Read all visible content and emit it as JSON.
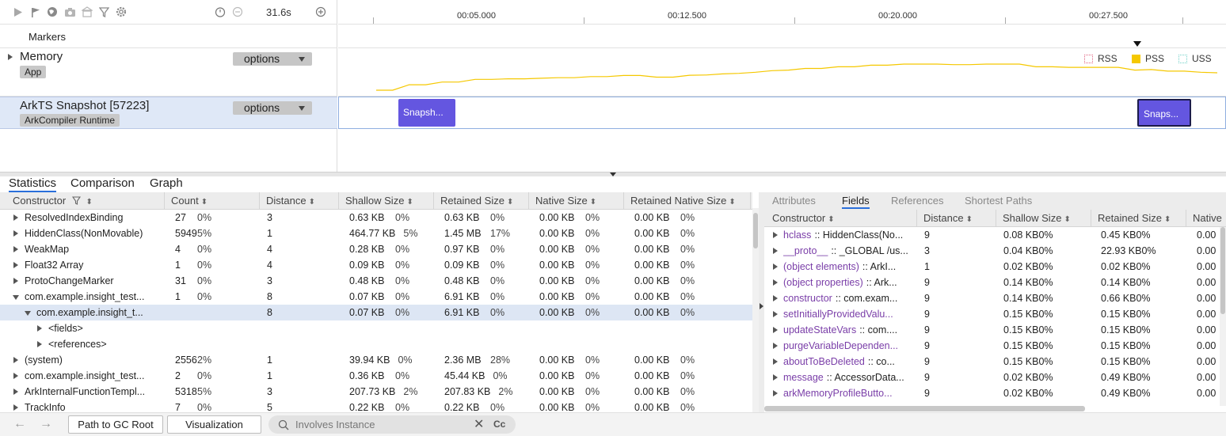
{
  "toolbar": {
    "duration": "31.6s",
    "icons": [
      "play-icon",
      "flag-icon",
      "globe-icon",
      "camera-icon",
      "building-icon",
      "filter-icon",
      "gear-icon",
      "timer-icon",
      "minus-circle-icon",
      "plus-circle-icon"
    ]
  },
  "tracks": {
    "markers_label": "Markers",
    "memory": {
      "title": "Memory",
      "chip": "App",
      "options": "options"
    },
    "snapshot": {
      "title": "ArkTS Snapshot [57223]",
      "chip": "ArkCompiler Runtime",
      "options": "options"
    }
  },
  "ruler": {
    "ticks": [
      "00:05.000",
      "00:12.500",
      "00:20.000",
      "00:27.500"
    ]
  },
  "legend": [
    {
      "label": "RSS",
      "color": "#e0607e",
      "style": "dotted"
    },
    {
      "label": "PSS",
      "color": "#f5c800",
      "style": "solid"
    },
    {
      "label": "USS",
      "color": "#6fd0c8",
      "style": "dotted"
    }
  ],
  "memory_series": {
    "name": "PSS",
    "color": "#f5c800",
    "values": [
      0,
      0,
      2,
      2,
      3,
      3,
      4,
      4,
      4.2,
      4.2,
      4.4,
      4.6,
      4.6,
      5,
      5,
      5.4,
      5.4,
      4.8,
      4.8,
      5.5,
      5.6,
      6,
      6.2,
      6.6,
      7.2,
      7.4,
      8,
      8,
      8.6,
      8.6,
      9.2,
      9.2,
      9.6,
      9.6,
      9.6,
      9.4,
      9.4,
      9.6,
      9.6,
      9.6,
      8.6,
      8.6,
      8.4,
      8.4,
      8.4,
      8.4,
      7.4,
      7.6,
      7.0,
      7.0,
      6.6,
      6.4
    ]
  },
  "snapshots": [
    {
      "label": "Snapsh...",
      "selected": false
    },
    {
      "label": "Snaps...",
      "selected": true
    }
  ],
  "bottom_tabs": [
    "Statistics",
    "Comparison",
    "Graph"
  ],
  "left_table": {
    "columns": [
      "Constructor",
      "Count",
      "Distance",
      "Shallow Size",
      "Retained Size",
      "Native Size",
      "Retained Native Size"
    ],
    "rows": [
      {
        "name": "ResolvedIndexBinding",
        "count": "27",
        "count_pct": "0%",
        "distance": "3",
        "shallow": "0.63 KB",
        "shallow_pct": "0%",
        "retained": "0.63 KB",
        "retained_pct": "0%",
        "native": "0.00 KB",
        "native_pct": "0%",
        "rnative": "0.00 KB",
        "rnative_pct": "0%"
      },
      {
        "name": "HiddenClass(NonMovable)",
        "count": "5949",
        "count_pct": "5%",
        "distance": "1",
        "shallow": "464.77 KB",
        "shallow_pct": "5%",
        "retained": "1.45 MB",
        "retained_pct": "17%",
        "native": "0.00 KB",
        "native_pct": "0%",
        "rnative": "0.00 KB",
        "rnative_pct": "0%"
      },
      {
        "name": "WeakMap",
        "count": "4",
        "count_pct": "0%",
        "distance": "4",
        "shallow": "0.28 KB",
        "shallow_pct": "0%",
        "retained": "0.97 KB",
        "retained_pct": "0%",
        "native": "0.00 KB",
        "native_pct": "0%",
        "rnative": "0.00 KB",
        "rnative_pct": "0%"
      },
      {
        "name": "Float32 Array",
        "count": "1",
        "count_pct": "0%",
        "distance": "4",
        "shallow": "0.09 KB",
        "shallow_pct": "0%",
        "retained": "0.09 KB",
        "retained_pct": "0%",
        "native": "0.00 KB",
        "native_pct": "0%",
        "rnative": "0.00 KB",
        "rnative_pct": "0%"
      },
      {
        "name": "ProtoChangeMarker",
        "count": "31",
        "count_pct": "0%",
        "distance": "3",
        "shallow": "0.48 KB",
        "shallow_pct": "0%",
        "retained": "0.48 KB",
        "retained_pct": "0%",
        "native": "0.00 KB",
        "native_pct": "0%",
        "rnative": "0.00 KB",
        "rnative_pct": "0%"
      },
      {
        "name": "com.example.insight_test...",
        "count": "1",
        "count_pct": "0%",
        "distance": "8",
        "shallow": "0.07 KB",
        "shallow_pct": "0%",
        "retained": "6.91 KB",
        "retained_pct": "0%",
        "native": "0.00 KB",
        "native_pct": "0%",
        "rnative": "0.00 KB",
        "rnative_pct": "0%"
      },
      {
        "name": "com.example.insight_t...",
        "count": "",
        "count_pct": "",
        "distance": "8",
        "shallow": "0.07 KB",
        "shallow_pct": "0%",
        "retained": "6.91 KB",
        "retained_pct": "0%",
        "native": "0.00 KB",
        "native_pct": "0%",
        "rnative": "0.00 KB",
        "rnative_pct": "0%"
      },
      {
        "name": "<fields>",
        "count": "",
        "count_pct": "",
        "distance": "",
        "shallow": "",
        "shallow_pct": "",
        "retained": "",
        "retained_pct": "",
        "native": "",
        "native_pct": "",
        "rnative": "",
        "rnative_pct": ""
      },
      {
        "name": "<references>",
        "count": "",
        "count_pct": "",
        "distance": "",
        "shallow": "",
        "shallow_pct": "",
        "retained": "",
        "retained_pct": "",
        "native": "",
        "native_pct": "",
        "rnative": "",
        "rnative_pct": ""
      },
      {
        "name": "(system)",
        "count": "2556",
        "count_pct": "2%",
        "distance": "1",
        "shallow": "39.94 KB",
        "shallow_pct": "0%",
        "retained": "2.36 MB",
        "retained_pct": "28%",
        "native": "0.00 KB",
        "native_pct": "0%",
        "rnative": "0.00 KB",
        "rnative_pct": "0%"
      },
      {
        "name": "com.example.insight_test...",
        "count": "2",
        "count_pct": "0%",
        "distance": "1",
        "shallow": "0.36 KB",
        "shallow_pct": "0%",
        "retained": "45.44 KB",
        "retained_pct": "0%",
        "native": "0.00 KB",
        "native_pct": "0%",
        "rnative": "0.00 KB",
        "rnative_pct": "0%"
      },
      {
        "name": "ArkInternalFunctionTempl...",
        "count": "5318",
        "count_pct": "5%",
        "distance": "3",
        "shallow": "207.73 KB",
        "shallow_pct": "2%",
        "retained": "207.83 KB",
        "retained_pct": "2%",
        "native": "0.00 KB",
        "native_pct": "0%",
        "rnative": "0.00 KB",
        "rnative_pct": "0%"
      },
      {
        "name": "TrackInfo",
        "count": "7",
        "count_pct": "0%",
        "distance": "5",
        "shallow": "0.22 KB",
        "shallow_pct": "0%",
        "retained": "0.22 KB",
        "retained_pct": "0%",
        "native": "0.00 KB",
        "native_pct": "0%",
        "rnative": "0.00 KB",
        "rnative_pct": "0%"
      }
    ]
  },
  "right_pane": {
    "tabs": [
      "Attributes",
      "Fields",
      "References",
      "Shortest Paths"
    ],
    "columns": [
      "Constructor",
      "Distance",
      "Shallow Size",
      "Retained Size",
      "Native"
    ],
    "rows": [
      {
        "field": "hclass",
        "type": ":: HiddenClass(No...",
        "distance": "9",
        "shallow": "0.08 KB",
        "shallow_pct": "0%",
        "retained": "0.45 KB",
        "retained_pct": "0%",
        "native": "0.00"
      },
      {
        "field": "__proto__",
        "type": ":: _GLOBAL /us...",
        "distance": "3",
        "shallow": "0.04 KB",
        "shallow_pct": "0%",
        "retained": "22.93 KB",
        "retained_pct": "0%",
        "native": "0.00"
      },
      {
        "field": "(object elements)",
        "type": ":: ArkI...",
        "distance": "1",
        "shallow": "0.02 KB",
        "shallow_pct": "0%",
        "retained": "0.02 KB",
        "retained_pct": "0%",
        "native": "0.00"
      },
      {
        "field": "(object properties)",
        "type": ":: Ark...",
        "distance": "9",
        "shallow": "0.14 KB",
        "shallow_pct": "0%",
        "retained": "0.14 KB",
        "retained_pct": "0%",
        "native": "0.00"
      },
      {
        "field": "constructor",
        "type": ":: com.exam...",
        "distance": "9",
        "shallow": "0.14 KB",
        "shallow_pct": "0%",
        "retained": "0.66 KB",
        "retained_pct": "0%",
        "native": "0.00"
      },
      {
        "field": "setInitiallyProvidedValu...",
        "type": "",
        "distance": "9",
        "shallow": "0.15 KB",
        "shallow_pct": "0%",
        "retained": "0.15 KB",
        "retained_pct": "0%",
        "native": "0.00"
      },
      {
        "field": "updateStateVars",
        "type": ":: com....",
        "distance": "9",
        "shallow": "0.15 KB",
        "shallow_pct": "0%",
        "retained": "0.15 KB",
        "retained_pct": "0%",
        "native": "0.00"
      },
      {
        "field": "purgeVariableDependen...",
        "type": "",
        "distance": "9",
        "shallow": "0.15 KB",
        "shallow_pct": "0%",
        "retained": "0.15 KB",
        "retained_pct": "0%",
        "native": "0.00"
      },
      {
        "field": "aboutToBeDeleted",
        "type": ":: co...",
        "distance": "9",
        "shallow": "0.15 KB",
        "shallow_pct": "0%",
        "retained": "0.15 KB",
        "retained_pct": "0%",
        "native": "0.00"
      },
      {
        "field": "message",
        "type": ":: AccessorData...",
        "distance": "9",
        "shallow": "0.02 KB",
        "shallow_pct": "0%",
        "retained": "0.49 KB",
        "retained_pct": "0%",
        "native": "0.00"
      },
      {
        "field": "arkMemoryProfileButto...",
        "type": "",
        "distance": "9",
        "shallow": "0.02 KB",
        "shallow_pct": "0%",
        "retained": "0.49 KB",
        "retained_pct": "0%",
        "native": "0.00"
      }
    ]
  },
  "footer": {
    "path_btn": "Path to GC Root",
    "viz_btn": "Visualization",
    "search_placeholder": "Involves Instance",
    "case_label": "Cc"
  }
}
